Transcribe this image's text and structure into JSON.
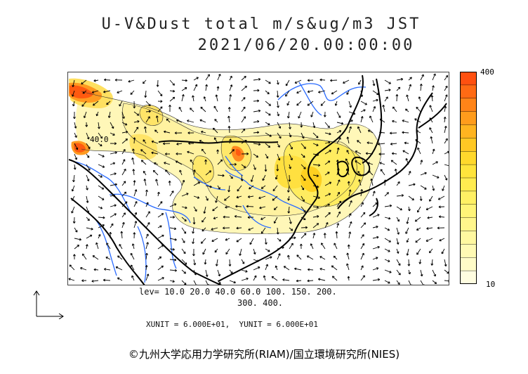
{
  "title": {
    "line1": "U-V&Dust total m/s&ug/m3 JST",
    "line2": "2021/06/20.00:00:00"
  },
  "colorbar": {
    "max_label": "400",
    "min_label": "10",
    "colors": [
      "#ff5010",
      "#ff6a14",
      "#ff8418",
      "#ff9c1c",
      "#ffb420",
      "#ffc824",
      "#ffd82c",
      "#ffe43c",
      "#ffec50",
      "#fff064",
      "#fff478",
      "#fff68c",
      "#fff8a0",
      "#fffab4",
      "#fffcc8",
      "#fffde0"
    ]
  },
  "map": {
    "contour_label": "40.0",
    "colors": {
      "dust_low": "#fff7b8",
      "dust_mid": "#ffec60",
      "dust_high": "#ffc020",
      "dust_peak": "#ff5a10",
      "river": "#2a6bff",
      "coast": "#000000",
      "border": "#444444",
      "arrow": "#000000"
    }
  },
  "legend": {
    "levels_line1": "lev= 10.0 20.0 40.0 60.0 100. 150. 200.",
    "levels_line2": "300. 400."
  },
  "units": "XUNIT = 6.000E+01,  YUNIT = 6.000E+01",
  "credit": "©九州大学応用力学研究所(RIAM)/国立環境研究所(NIES)"
}
